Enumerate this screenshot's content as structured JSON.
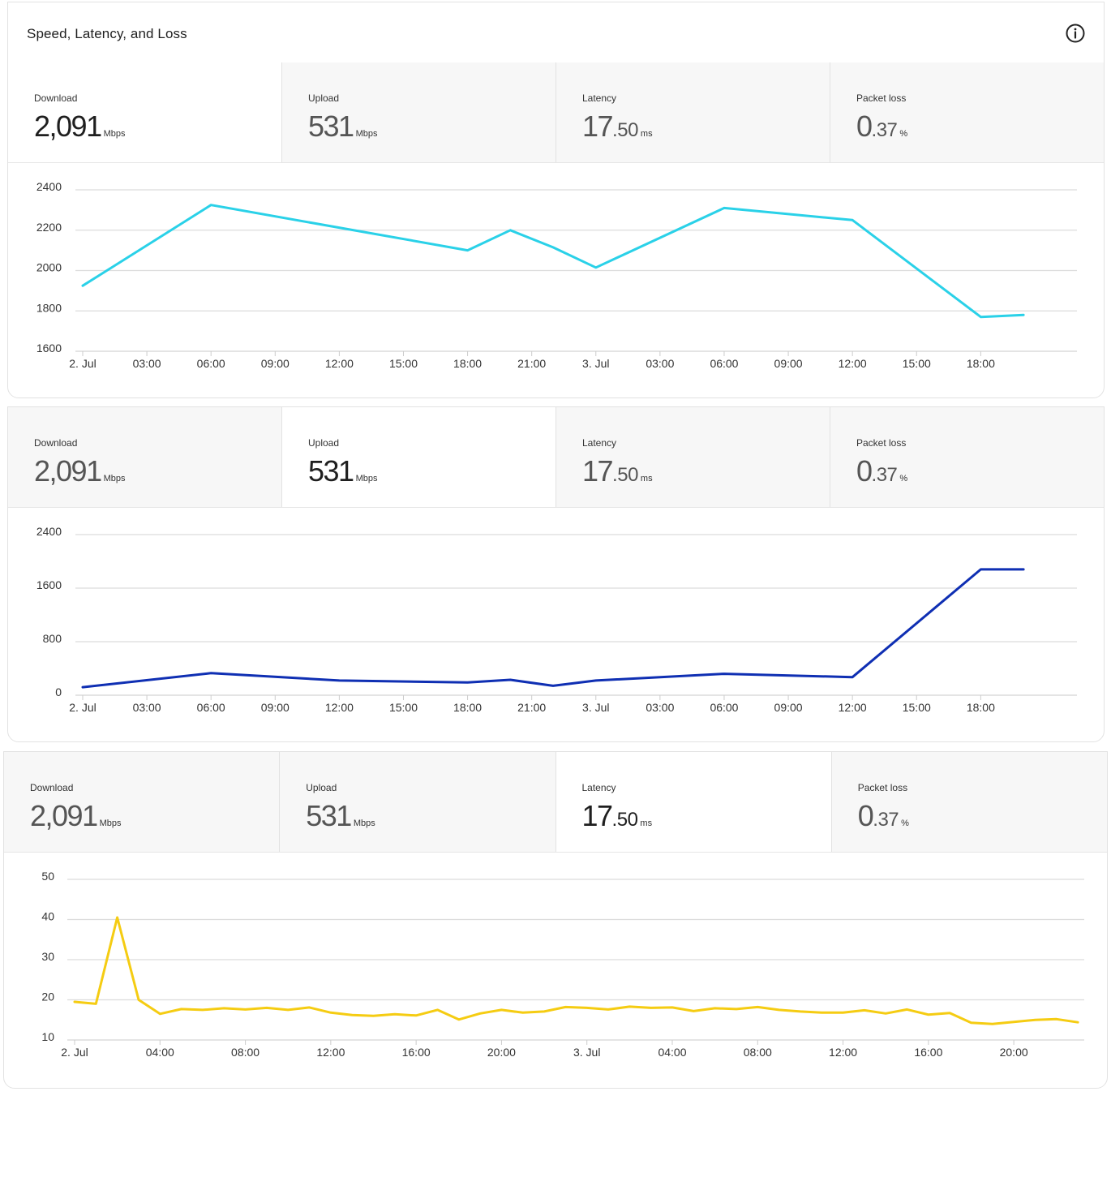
{
  "card": {
    "title": "Speed, Latency, and Loss",
    "info_icon": "info-icon"
  },
  "panels": [
    {
      "active_stat": 0,
      "stats": [
        {
          "label": "Download",
          "int": "2,091",
          "dec": "",
          "unit": "Mbps"
        },
        {
          "label": "Upload",
          "int": "531",
          "dec": "",
          "unit": "Mbps"
        },
        {
          "label": "Latency",
          "int": "17",
          "dec": ".50",
          "unit": "ms"
        },
        {
          "label": "Packet loss",
          "int": "0",
          "dec": ".37",
          "unit": "%"
        }
      ]
    },
    {
      "active_stat": 1,
      "stats": [
        {
          "label": "Download",
          "int": "2,091",
          "dec": "",
          "unit": "Mbps"
        },
        {
          "label": "Upload",
          "int": "531",
          "dec": "",
          "unit": "Mbps"
        },
        {
          "label": "Latency",
          "int": "17",
          "dec": ".50",
          "unit": "ms"
        },
        {
          "label": "Packet loss",
          "int": "0",
          "dec": ".37",
          "unit": "%"
        }
      ]
    },
    {
      "active_stat": 2,
      "stats": [
        {
          "label": "Download",
          "int": "2,091",
          "dec": "",
          "unit": "Mbps"
        },
        {
          "label": "Upload",
          "int": "531",
          "dec": "",
          "unit": "Mbps"
        },
        {
          "label": "Latency",
          "int": "17",
          "dec": ".50",
          "unit": "ms"
        },
        {
          "label": "Packet loss",
          "int": "0",
          "dec": ".37",
          "unit": "%"
        }
      ]
    }
  ],
  "chart_data": [
    {
      "type": "line",
      "color": "#2ad1e8",
      "grid": true,
      "ylim": [
        1600,
        2400
      ],
      "yticks": [
        2400,
        2200,
        2000,
        1800,
        1600
      ],
      "xlim": [
        0,
        46.5
      ],
      "xticks": [
        {
          "x": 0,
          "label": "2. Jul"
        },
        {
          "x": 3,
          "label": "03:00"
        },
        {
          "x": 6,
          "label": "06:00"
        },
        {
          "x": 9,
          "label": "09:00"
        },
        {
          "x": 12,
          "label": "12:00"
        },
        {
          "x": 15,
          "label": "15:00"
        },
        {
          "x": 18,
          "label": "18:00"
        },
        {
          "x": 21,
          "label": "21:00"
        },
        {
          "x": 24,
          "label": "3. Jul"
        },
        {
          "x": 27,
          "label": "03:00"
        },
        {
          "x": 30,
          "label": "06:00"
        },
        {
          "x": 33,
          "label": "09:00"
        },
        {
          "x": 36,
          "label": "12:00"
        },
        {
          "x": 39,
          "label": "15:00"
        },
        {
          "x": 42,
          "label": "18:00"
        }
      ],
      "x": [
        0,
        6,
        18,
        20,
        22,
        24,
        30,
        36,
        42,
        44
      ],
      "values": [
        1925,
        2325,
        2100,
        2200,
        2115,
        2015,
        2310,
        2250,
        1770,
        1780
      ]
    },
    {
      "type": "line",
      "color": "#0f2fb3",
      "grid": true,
      "ylim": [
        0,
        2400
      ],
      "yticks": [
        2400,
        1600,
        800,
        0
      ],
      "xlim": [
        0,
        46.5
      ],
      "xticks": [
        {
          "x": 0,
          "label": "2. Jul"
        },
        {
          "x": 3,
          "label": "03:00"
        },
        {
          "x": 6,
          "label": "06:00"
        },
        {
          "x": 9,
          "label": "09:00"
        },
        {
          "x": 12,
          "label": "12:00"
        },
        {
          "x": 15,
          "label": "15:00"
        },
        {
          "x": 18,
          "label": "18:00"
        },
        {
          "x": 21,
          "label": "21:00"
        },
        {
          "x": 24,
          "label": "3. Jul"
        },
        {
          "x": 27,
          "label": "03:00"
        },
        {
          "x": 30,
          "label": "06:00"
        },
        {
          "x": 33,
          "label": "09:00"
        },
        {
          "x": 36,
          "label": "12:00"
        },
        {
          "x": 39,
          "label": "15:00"
        },
        {
          "x": 42,
          "label": "18:00"
        }
      ],
      "x": [
        0,
        6,
        12,
        18,
        20,
        22,
        24,
        30,
        36,
        42,
        44
      ],
      "values": [
        120,
        330,
        220,
        190,
        230,
        140,
        220,
        320,
        270,
        1880,
        1880
      ]
    },
    {
      "type": "line",
      "color": "#f5cc12",
      "grid": true,
      "ylim": [
        10,
        50
      ],
      "yticks": [
        50,
        40,
        30,
        20,
        10
      ],
      "xlim": [
        0,
        47.3
      ],
      "xticks": [
        {
          "x": 0,
          "label": "2. Jul"
        },
        {
          "x": 4,
          "label": "04:00"
        },
        {
          "x": 8,
          "label": "08:00"
        },
        {
          "x": 12,
          "label": "12:00"
        },
        {
          "x": 16,
          "label": "16:00"
        },
        {
          "x": 20,
          "label": "20:00"
        },
        {
          "x": 24,
          "label": "3. Jul"
        },
        {
          "x": 28,
          "label": "04:00"
        },
        {
          "x": 32,
          "label": "08:00"
        },
        {
          "x": 36,
          "label": "12:00"
        },
        {
          "x": 40,
          "label": "16:00"
        },
        {
          "x": 44,
          "label": "20:00"
        }
      ],
      "x": [
        0,
        1,
        2,
        3,
        4,
        5,
        6,
        7,
        8,
        9,
        10,
        11,
        12,
        13,
        14,
        15,
        16,
        17,
        18,
        19,
        20,
        21,
        22,
        23,
        24,
        25,
        26,
        27,
        28,
        29,
        30,
        31,
        32,
        33,
        34,
        35,
        36,
        37,
        38,
        39,
        40,
        41,
        42,
        43,
        44,
        45,
        46,
        47
      ],
      "values": [
        19.5,
        19,
        40.5,
        20,
        16.5,
        17.7,
        17.5,
        17.9,
        17.6,
        18,
        17.5,
        18.1,
        16.8,
        16.2,
        16,
        16.4,
        16.1,
        17.5,
        15.1,
        16.6,
        17.5,
        16.8,
        17.1,
        18.2,
        18,
        17.6,
        18.3,
        18,
        18.1,
        17.2,
        17.9,
        17.7,
        18.2,
        17.5,
        17.1,
        16.8,
        16.8,
        17.4,
        16.6,
        17.6,
        16.3,
        16.7,
        14.3,
        14,
        14.5,
        15,
        15.2,
        14.4
      ]
    }
  ]
}
